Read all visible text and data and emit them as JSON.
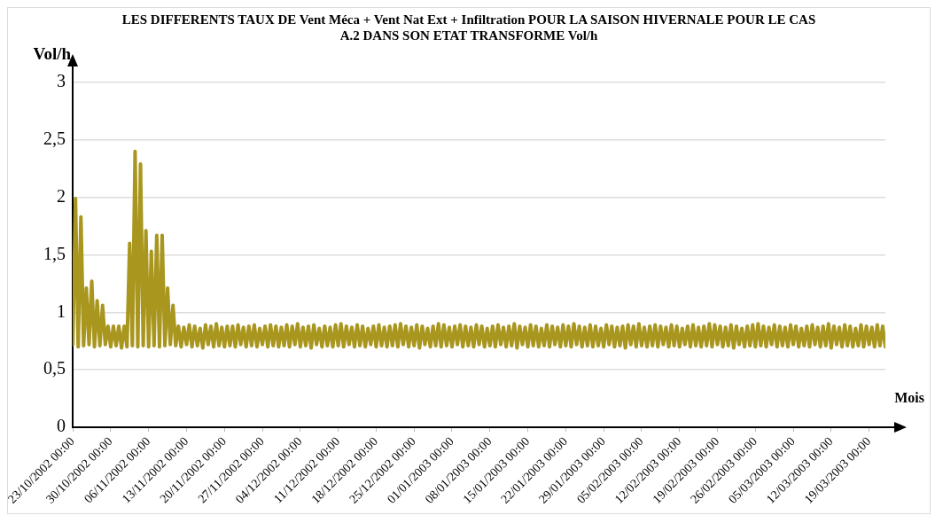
{
  "chart_data": {
    "type": "line",
    "title": "LES DIFFERENTS TAUX DE Vent Méca + Vent Nat Ext + Infiltration POUR LA SAISON HIVERNALE POUR LE CAS A.2 DANS SON ETAT TRANSFORME Vol/h",
    "xlabel": "Mois",
    "ylabel": "Vol/h",
    "color": "#a8961e",
    "grid": "y",
    "line_style": "solid",
    "xlim": [
      "2002-10-23",
      "2003-03-22"
    ],
    "ylim": [
      0,
      3
    ],
    "yticks": [
      0,
      {
        "value": 0.5,
        "label": "0,5"
      },
      1,
      {
        "value": 1.5,
        "label": "1,5"
      },
      2,
      {
        "value": 2.5,
        "label": "2,5"
      },
      3
    ],
    "xticks": [
      {
        "value": "2002-10-23",
        "label": "23/10/2002 00:00"
      },
      {
        "value": "2002-10-30",
        "label": "30/10/2002 00:00"
      },
      {
        "value": "2002-11-06",
        "label": "06/11/2002 00:00"
      },
      {
        "value": "2002-11-13",
        "label": "13/11/2002 00:00"
      },
      {
        "value": "2002-11-20",
        "label": "20/11/2002 00:00"
      },
      {
        "value": "2002-11-27",
        "label": "27/11/2002 00:00"
      },
      {
        "value": "2002-12-04",
        "label": "04/12/2002 00:00"
      },
      {
        "value": "2002-12-11",
        "label": "11/12/2002 00:00"
      },
      {
        "value": "2002-12-18",
        "label": "18/12/2002 00:00"
      },
      {
        "value": "2002-12-25",
        "label": "25/12/2002 00:00"
      },
      {
        "value": "2003-01-01",
        "label": "01/01/2003 00:00"
      },
      {
        "value": "2003-01-08",
        "label": "08/01/2003 00:00"
      },
      {
        "value": "2003-01-15",
        "label": "15/01/2003 00:00"
      },
      {
        "value": "2003-01-22",
        "label": "22/01/2003 00:00"
      },
      {
        "value": "2003-01-29",
        "label": "29/01/2003 00:00"
      },
      {
        "value": "2003-02-05",
        "label": "05/02/2003 00:00"
      },
      {
        "value": "2003-02-12",
        "label": "12/02/2003 00:00"
      },
      {
        "value": "2003-02-19",
        "label": "19/02/2003 00:00"
      },
      {
        "value": "2003-02-26",
        "label": "26/02/2003 00:00"
      },
      {
        "value": "2003-03-05",
        "label": "05/03/2003 00:00"
      },
      {
        "value": "2003-03-12",
        "label": "12/03/2003 00:00"
      },
      {
        "value": "2003-03-19",
        "label": "19/03/2003 00:00"
      }
    ],
    "x": [
      "2002-10-23T00:00",
      "2002-10-23T12:00",
      "2002-10-24T00:00",
      "2002-10-24T12:00",
      "2002-10-25T00:00",
      "2002-10-25T12:00",
      "2002-10-26T00:00",
      "2002-10-26T12:00",
      "2002-10-27T00:00",
      "2002-10-27T12:00",
      "2002-10-28T00:00",
      "2002-10-28T12:00",
      "2002-10-29T00:00",
      "2002-10-29T12:00",
      "2002-10-30T00:00",
      "2002-10-30T12:00",
      "2002-10-31T00:00",
      "2002-10-31T12:00",
      "2002-11-01T00:00",
      "2002-11-01T12:00",
      "2002-11-02T00:00",
      "2002-11-02T12:00",
      "2002-11-03T00:00",
      "2002-11-03T12:00",
      "2002-11-04T00:00",
      "2002-11-04T12:00",
      "2002-11-05T00:00",
      "2002-11-05T12:00",
      "2002-11-06T00:00",
      "2002-11-06T12:00",
      "2002-11-07T00:00",
      "2002-11-07T12:00",
      "2002-11-08T00:00",
      "2002-11-08T12:00",
      "2002-11-09T00:00",
      "2002-11-09T12:00",
      "2002-11-10T00:00",
      "2002-11-10T12:00",
      "2002-11-11T00:00",
      "2002-11-11T12:00",
      "2002-11-12T00:00",
      "2002-11-12T12:00",
      "2002-11-13T00:00",
      "2002-11-13T12:00",
      "2002-11-14T00:00",
      "2002-11-14T12:00",
      "2002-11-15T00:00",
      "2002-11-15T12:00",
      "2002-11-16T00:00",
      "2002-11-16T12:00",
      "2002-11-17T00:00",
      "2002-11-17T12:00",
      "2002-11-18T00:00",
      "2002-11-18T12:00",
      "2002-11-19T00:00",
      "2002-11-19T12:00",
      "2002-11-20T00:00",
      "2002-11-20T12:00",
      "2002-11-21T00:00",
      "2002-11-21T12:00",
      "2002-11-22T00:00",
      "2002-11-22T12:00",
      "2002-11-23T00:00",
      "2002-11-23T12:00",
      "2002-11-24T00:00",
      "2002-11-24T12:00",
      "2002-11-25T00:00",
      "2002-11-25T12:00",
      "2002-11-26T00:00",
      "2002-11-26T12:00",
      "2002-11-27T00:00",
      "2002-11-27T12:00",
      "2002-11-28T00:00",
      "2002-11-28T12:00",
      "2002-11-29T00:00",
      "2002-11-29T12:00",
      "2002-11-30T00:00",
      "2002-11-30T12:00",
      "2002-12-01T00:00",
      "2002-12-01T12:00",
      "2002-12-02T00:00",
      "2002-12-02T12:00",
      "2002-12-03T00:00",
      "2002-12-03T12:00",
      "2002-12-04T00:00",
      "2002-12-04T12:00",
      "2002-12-05T00:00",
      "2002-12-05T12:00",
      "2002-12-06T00:00",
      "2002-12-06T12:00",
      "2002-12-07T00:00",
      "2002-12-07T12:00",
      "2002-12-08T00:00",
      "2002-12-08T12:00",
      "2002-12-09T00:00",
      "2002-12-09T12:00",
      "2002-12-10T00:00",
      "2002-12-10T12:00",
      "2002-12-11T00:00",
      "2002-12-11T12:00",
      "2002-12-12T00:00",
      "2002-12-12T12:00",
      "2002-12-13T00:00",
      "2002-12-13T12:00",
      "2002-12-14T00:00",
      "2002-12-14T12:00",
      "2002-12-15T00:00",
      "2002-12-15T12:00",
      "2002-12-16T00:00",
      "2002-12-16T12:00",
      "2002-12-17T00:00",
      "2002-12-17T12:00",
      "2002-12-18T00:00",
      "2002-12-18T12:00",
      "2002-12-19T00:00",
      "2002-12-19T12:00",
      "2002-12-20T00:00",
      "2002-12-20T12:00",
      "2002-12-21T00:00",
      "2002-12-21T12:00",
      "2002-12-22T00:00",
      "2002-12-22T12:00",
      "2002-12-23T00:00",
      "2002-12-23T12:00",
      "2002-12-24T00:00",
      "2002-12-24T12:00",
      "2002-12-25T00:00",
      "2002-12-25T12:00",
      "2002-12-26T00:00",
      "2002-12-26T12:00",
      "2002-12-27T00:00",
      "2002-12-27T12:00",
      "2002-12-28T00:00",
      "2002-12-28T12:00",
      "2002-12-29T00:00",
      "2002-12-29T12:00",
      "2002-12-30T00:00",
      "2002-12-30T12:00",
      "2002-12-31T00:00",
      "2002-12-31T12:00",
      "2003-01-01T00:00",
      "2003-01-01T12:00",
      "2003-01-02T00:00",
      "2003-01-02T12:00",
      "2003-01-03T00:00",
      "2003-01-03T12:00",
      "2003-01-04T00:00",
      "2003-01-04T12:00",
      "2003-01-05T00:00",
      "2003-01-05T12:00",
      "2003-01-06T00:00",
      "2003-01-06T12:00",
      "2003-01-07T00:00",
      "2003-01-07T12:00",
      "2003-01-08T00:00",
      "2003-01-08T12:00",
      "2003-01-09T00:00",
      "2003-01-09T12:00",
      "2003-01-10T00:00",
      "2003-01-10T12:00",
      "2003-01-11T00:00",
      "2003-01-11T12:00",
      "2003-01-12T00:00",
      "2003-01-12T12:00",
      "2003-01-13T00:00",
      "2003-01-13T12:00",
      "2003-01-14T00:00",
      "2003-01-14T12:00",
      "2003-01-15T00:00",
      "2003-01-15T12:00",
      "2003-01-16T00:00",
      "2003-01-16T12:00",
      "2003-01-17T00:00",
      "2003-01-17T12:00",
      "2003-01-18T00:00",
      "2003-01-18T12:00",
      "2003-01-19T00:00",
      "2003-01-19T12:00",
      "2003-01-20T00:00",
      "2003-01-20T12:00",
      "2003-01-21T00:00",
      "2003-01-21T12:00",
      "2003-01-22T00:00",
      "2003-01-22T12:00",
      "2003-01-23T00:00",
      "2003-01-23T12:00",
      "2003-01-24T00:00",
      "2003-01-24T12:00",
      "2003-01-25T00:00",
      "2003-01-25T12:00",
      "2003-01-26T00:00",
      "2003-01-26T12:00",
      "2003-01-27T00:00",
      "2003-01-27T12:00",
      "2003-01-28T00:00",
      "2003-01-28T12:00",
      "2003-01-29T00:00",
      "2003-01-29T12:00",
      "2003-01-30T00:00",
      "2003-01-30T12:00",
      "2003-01-31T00:00",
      "2003-01-31T12:00",
      "2003-02-01T00:00",
      "2003-02-01T12:00",
      "2003-02-02T00:00",
      "2003-02-02T12:00",
      "2003-02-03T00:00",
      "2003-02-03T12:00",
      "2003-02-04T00:00",
      "2003-02-04T12:00",
      "2003-02-05T00:00",
      "2003-02-05T12:00",
      "2003-02-06T00:00",
      "2003-02-06T12:00",
      "2003-02-07T00:00",
      "2003-02-07T12:00",
      "2003-02-08T00:00",
      "2003-02-08T12:00",
      "2003-02-09T00:00",
      "2003-02-09T12:00",
      "2003-02-10T00:00",
      "2003-02-10T12:00",
      "2003-02-11T00:00",
      "2003-02-11T12:00",
      "2003-02-12T00:00",
      "2003-02-12T12:00",
      "2003-02-13T00:00",
      "2003-02-13T12:00",
      "2003-02-14T00:00",
      "2003-02-14T12:00",
      "2003-02-15T00:00",
      "2003-02-15T12:00",
      "2003-02-16T00:00",
      "2003-02-16T12:00",
      "2003-02-17T00:00",
      "2003-02-17T12:00",
      "2003-02-18T00:00",
      "2003-02-18T12:00",
      "2003-02-19T00:00",
      "2003-02-19T12:00",
      "2003-02-20T00:00",
      "2003-02-20T12:00",
      "2003-02-21T00:00",
      "2003-02-21T12:00",
      "2003-02-22T00:00",
      "2003-02-22T12:00",
      "2003-02-23T00:00",
      "2003-02-23T12:00",
      "2003-02-24T00:00",
      "2003-02-24T12:00",
      "2003-02-25T00:00",
      "2003-02-25T12:00",
      "2003-02-26T00:00",
      "2003-02-26T12:00",
      "2003-02-27T00:00",
      "2003-02-27T12:00",
      "2003-02-28T00:00",
      "2003-02-28T12:00",
      "2003-03-01T00:00",
      "2003-03-01T12:00",
      "2003-03-02T00:00",
      "2003-03-02T12:00",
      "2003-03-03T00:00",
      "2003-03-03T12:00",
      "2003-03-04T00:00",
      "2003-03-04T12:00",
      "2003-03-05T00:00",
      "2003-03-05T12:00",
      "2003-03-06T00:00",
      "2003-03-06T12:00",
      "2003-03-07T00:00",
      "2003-03-07T12:00",
      "2003-03-08T00:00",
      "2003-03-08T12:00",
      "2003-03-09T00:00",
      "2003-03-09T12:00",
      "2003-03-10T00:00",
      "2003-03-10T12:00",
      "2003-03-11T00:00",
      "2003-03-11T12:00",
      "2003-03-12T00:00",
      "2003-03-12T12:00",
      "2003-03-13T00:00",
      "2003-03-13T12:00",
      "2003-03-14T00:00",
      "2003-03-14T12:00",
      "2003-03-15T00:00",
      "2003-03-15T12:00",
      "2003-03-16T00:00",
      "2003-03-16T12:00",
      "2003-03-17T00:00",
      "2003-03-17T12:00",
      "2003-03-18T00:00",
      "2003-03-18T12:00",
      "2003-03-19T00:00",
      "2003-03-19T12:00",
      "2003-03-20T00:00",
      "2003-03-20T12:00",
      "2003-03-21T00:00",
      "2003-03-21T12:00",
      "2003-03-22T00:00"
    ],
    "values": [
      0.72,
      1.99,
      0.7,
      1.83,
      0.71,
      1.21,
      0.72,
      1.27,
      0.7,
      1.1,
      0.71,
      1.06,
      0.72,
      0.88,
      0.7,
      0.88,
      0.71,
      0.88,
      0.69,
      0.88,
      0.7,
      1.6,
      0.71,
      2.4,
      0.7,
      2.29,
      0.71,
      1.71,
      0.7,
      1.53,
      0.71,
      1.67,
      0.7,
      1.67,
      0.71,
      1.21,
      0.72,
      1.06,
      0.71,
      0.88,
      0.7,
      0.87,
      0.72,
      0.89,
      0.7,
      0.88,
      0.71,
      0.86,
      0.69,
      0.89,
      0.72,
      0.88,
      0.7,
      0.9,
      0.71,
      0.87,
      0.7,
      0.88,
      0.71,
      0.88,
      0.7,
      0.89,
      0.72,
      0.87,
      0.7,
      0.88,
      0.71,
      0.89,
      0.7,
      0.86,
      0.72,
      0.88,
      0.7,
      0.89,
      0.71,
      0.88,
      0.7,
      0.87,
      0.71,
      0.89,
      0.7,
      0.88,
      0.72,
      0.9,
      0.7,
      0.87,
      0.71,
      0.88,
      0.69,
      0.89,
      0.72,
      0.86,
      0.7,
      0.88,
      0.71,
      0.87,
      0.7,
      0.89,
      0.71,
      0.9,
      0.7,
      0.88,
      0.72,
      0.87,
      0.7,
      0.89,
      0.71,
      0.88,
      0.7,
      0.86,
      0.72,
      0.88,
      0.7,
      0.89,
      0.71,
      0.87,
      0.7,
      0.88,
      0.71,
      0.89,
      0.7,
      0.9,
      0.72,
      0.88,
      0.7,
      0.87,
      0.71,
      0.89,
      0.69,
      0.88,
      0.72,
      0.86,
      0.7,
      0.88,
      0.71,
      0.9,
      0.7,
      0.89,
      0.71,
      0.87,
      0.7,
      0.88,
      0.72,
      0.89,
      0.7,
      0.88,
      0.71,
      0.87,
      0.7,
      0.89,
      0.72,
      0.88,
      0.7,
      0.86,
      0.71,
      0.88,
      0.7,
      0.89,
      0.72,
      0.87,
      0.7,
      0.88,
      0.71,
      0.9,
      0.69,
      0.88,
      0.72,
      0.87,
      0.7,
      0.89,
      0.71,
      0.88,
      0.7,
      0.86,
      0.71,
      0.89,
      0.7,
      0.88,
      0.72,
      0.87,
      0.7,
      0.89,
      0.71,
      0.88,
      0.7,
      0.9,
      0.72,
      0.88,
      0.7,
      0.87,
      0.71,
      0.89,
      0.7,
      0.88,
      0.71,
      0.86,
      0.7,
      0.89,
      0.72,
      0.88,
      0.7,
      0.87,
      0.71,
      0.88,
      0.69,
      0.89,
      0.72,
      0.88,
      0.7,
      0.9,
      0.71,
      0.87,
      0.7,
      0.88,
      0.71,
      0.89,
      0.7,
      0.88,
      0.72,
      0.87,
      0.7,
      0.89,
      0.71,
      0.88,
      0.7,
      0.86,
      0.72,
      0.88,
      0.7,
      0.89,
      0.71,
      0.87,
      0.7,
      0.88,
      0.71,
      0.9,
      0.7,
      0.89,
      0.72,
      0.88,
      0.7,
      0.87,
      0.71,
      0.89,
      0.69,
      0.88,
      0.72,
      0.86,
      0.7,
      0.88,
      0.71,
      0.89,
      0.7,
      0.9,
      0.71,
      0.88,
      0.7,
      0.87,
      0.72,
      0.89,
      0.7,
      0.88,
      0.71,
      0.87,
      0.7,
      0.89,
      0.72,
      0.88,
      0.7,
      0.86,
      0.71,
      0.88,
      0.7,
      0.89,
      0.72,
      0.87,
      0.7,
      0.88,
      0.71,
      0.9,
      0.69,
      0.88,
      0.72,
      0.87,
      0.7,
      0.89,
      0.71,
      0.88,
      0.7,
      0.86,
      0.71,
      0.89,
      0.7,
      0.88,
      0.72,
      0.87,
      0.7,
      0.89,
      0.71,
      0.88,
      0.7
    ]
  }
}
